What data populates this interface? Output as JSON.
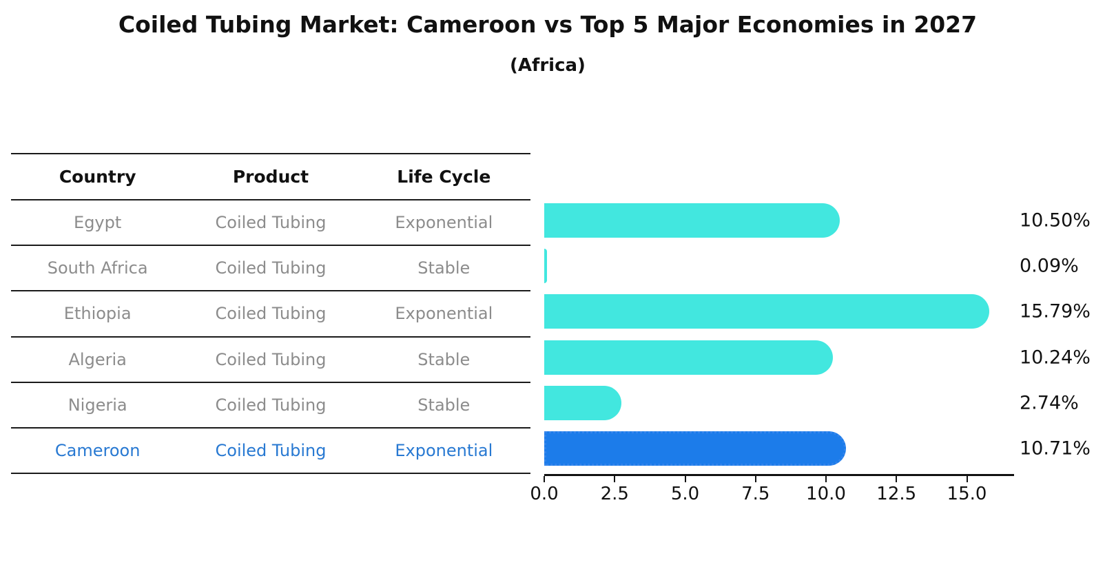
{
  "title": "Coiled Tubing Market: Cameroon vs Top 5 Major Economies in 2027",
  "subtitle": "(Africa)",
  "table": {
    "headers": [
      "Country",
      "Product",
      "Life Cycle"
    ],
    "rows": [
      {
        "country": "Egypt",
        "product": "Coiled Tubing",
        "life_cycle": "Exponential",
        "highlight": false
      },
      {
        "country": "South Africa",
        "product": "Coiled Tubing",
        "life_cycle": "Stable",
        "highlight": false
      },
      {
        "country": "Ethiopia",
        "product": "Coiled Tubing",
        "life_cycle": "Exponential",
        "highlight": false
      },
      {
        "country": "Algeria",
        "product": "Coiled Tubing",
        "life_cycle": "Stable",
        "highlight": false
      },
      {
        "country": "Nigeria",
        "product": "Coiled Tubing",
        "life_cycle": "Stable",
        "highlight": false
      },
      {
        "country": "Cameroon",
        "product": "Coiled Tubing",
        "life_cycle": "Exponential",
        "highlight": true
      }
    ]
  },
  "chart_data": {
    "type": "bar",
    "orientation": "horizontal",
    "title": "Coiled Tubing Market: Cameroon vs Top 5 Major Economies in 2027",
    "subtitle": "(Africa)",
    "categories": [
      "Egypt",
      "South Africa",
      "Ethiopia",
      "Algeria",
      "Nigeria",
      "Cameroon"
    ],
    "values": [
      10.5,
      0.09,
      15.79,
      10.24,
      2.74,
      10.71
    ],
    "value_labels": [
      "10.50%",
      "0.09%",
      "15.79%",
      "10.24%",
      "2.74%",
      "10.71%"
    ],
    "x_ticks": [
      0.0,
      2.5,
      5.0,
      7.5,
      10.0,
      12.5,
      15.0
    ],
    "x_tick_labels": [
      "0.0",
      "2.5",
      "5.0",
      "7.5",
      "10.0",
      "12.5",
      "15.0"
    ],
    "xlim": [
      0,
      16.6
    ],
    "grid": false,
    "legend": false,
    "highlight_index": 5
  },
  "colors": {
    "bar": "#42E7DF",
    "highlight_bar": "#1C7CEA",
    "highlight_border": "#3485EC",
    "highlight_text": "#2879D2",
    "table_text": "#8C8C8C",
    "axis": "#111111"
  }
}
